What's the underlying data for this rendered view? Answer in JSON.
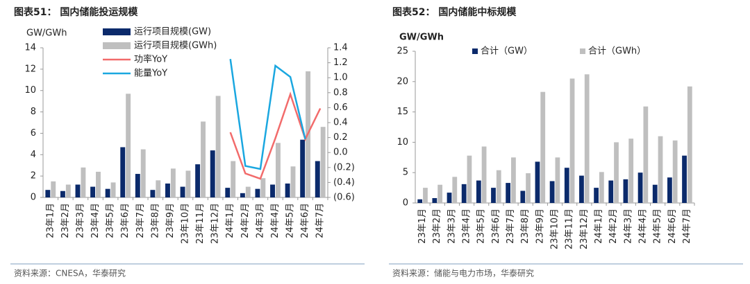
{
  "chart_data": [
    {
      "type": "combo",
      "title": "图表51： 国内储能投运规模",
      "y_label": "GW/GWh",
      "source": "资料来源：CNESA，华泰研究",
      "categories": [
        "23年1月",
        "23年2月",
        "23年3月",
        "23年4月",
        "23年5月",
        "23年6月",
        "23年7月",
        "23年8月",
        "23年9月",
        "23年10月",
        "23年11月",
        "23年12月",
        "24年1月",
        "24年2月",
        "24年3月",
        "24年4月",
        "24年5月",
        "24年6月",
        "24年7月"
      ],
      "ylim": [
        0,
        14
      ],
      "yticks": [
        0,
        2,
        4,
        6,
        8,
        10,
        12,
        14
      ],
      "y2lim": [
        -0.6,
        1.4
      ],
      "y2ticks": [
        {
          "value": -0.6,
          "label": "(0.6)"
        },
        {
          "value": -0.4,
          "label": "(0.4)"
        },
        {
          "value": -0.2,
          "label": "(0.2)"
        },
        {
          "value": 0,
          "label": "0.0"
        },
        0.2,
        0.4,
        0.6,
        0.8,
        {
          "value": 1,
          "label": "1.0"
        },
        1.2,
        1.4
      ],
      "legend": "upper left",
      "series": [
        {
          "name": "运行项目规模(GW)",
          "type": "bar",
          "color": "#0b2a6b",
          "values": [
            0.7,
            0.6,
            1.2,
            1.0,
            0.8,
            4.7,
            2.2,
            0.7,
            1.3,
            1.0,
            3.1,
            4.4,
            0.9,
            0.4,
            0.8,
            1.2,
            1.3,
            5.4,
            3.4
          ]
        },
        {
          "name": "运行项目规模(GWh)",
          "type": "bar",
          "color": "#bfbfbf",
          "values": [
            1.5,
            1.2,
            2.8,
            2.4,
            1.4,
            9.7,
            4.5,
            1.6,
            2.7,
            2.5,
            7.1,
            9.5,
            3.4,
            1.0,
            1.8,
            5.1,
            2.9,
            11.8,
            6.6
          ]
        },
        {
          "name": "功率YoY",
          "type": "line",
          "axis": "y2",
          "color": "#f26b6b",
          "values": [
            null,
            null,
            null,
            null,
            null,
            null,
            null,
            null,
            null,
            null,
            null,
            null,
            0.27,
            -0.28,
            -0.35,
            0.19,
            0.78,
            0.18,
            0.59
          ]
        },
        {
          "name": "能量YoY",
          "type": "line",
          "axis": "y2",
          "color": "#1aa7e0",
          "values": [
            null,
            null,
            null,
            null,
            null,
            null,
            null,
            null,
            null,
            null,
            null,
            null,
            1.25,
            -0.18,
            -0.22,
            1.16,
            1.01,
            0.18,
            null
          ]
        }
      ]
    },
    {
      "type": "bar",
      "title": "图表52： 国内储能中标规模",
      "y_label": "GW/GWh",
      "source": "资料来源：储能与电力市场，华泰研究",
      "categories": [
        "23年1月",
        "23年2月",
        "23年3月",
        "23年4月",
        "23年5月",
        "23年6月",
        "23年7月",
        "23年8月",
        "23年9月",
        "23年10月",
        "23年11月",
        "23年12月",
        "24年1月",
        "24年2月",
        "24年3月",
        "24年4月",
        "24年5月",
        "24年6月",
        "24年7月"
      ],
      "ylim": [
        0,
        25
      ],
      "yticks": [
        0,
        5,
        10,
        15,
        20,
        25
      ],
      "legend": "upper center",
      "series": [
        {
          "name": "合计（GW）",
          "type": "bar",
          "color": "#0b2a6b",
          "values": [
            0.6,
            0.8,
            1.7,
            3.1,
            3.7,
            2.5,
            3.3,
            2.0,
            6.8,
            3.6,
            5.8,
            4.5,
            2.5,
            3.7,
            3.9,
            5.0,
            3.0,
            4.2,
            7.8
          ]
        },
        {
          "name": "合计（GWh）",
          "type": "bar",
          "color": "#bfbfbf",
          "values": [
            2.5,
            3.0,
            4.3,
            7.8,
            9.3,
            5.4,
            7.5,
            4.9,
            18.3,
            7.5,
            20.5,
            21.2,
            5.1,
            10.0,
            10.6,
            15.9,
            11.0,
            10.3,
            19.2
          ]
        }
      ]
    }
  ]
}
